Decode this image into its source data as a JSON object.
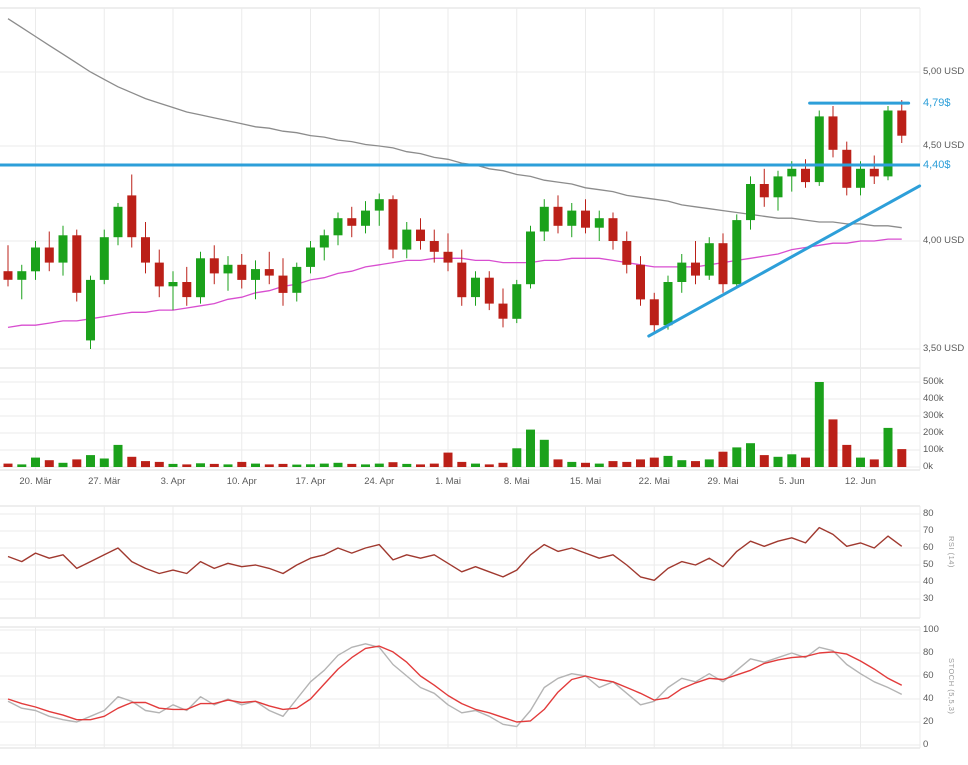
{
  "colors": {
    "up": "#1ba11b",
    "down": "#bb2018",
    "ma_long": "#8c8c8c",
    "ma_short": "#d84ed0",
    "annotation_blue": "#2d9fd9",
    "rsi_line": "#a0392f",
    "stoch_k": "#b4b4b4",
    "stoch_d": "#e23b3b",
    "grid": "#ebebeb",
    "border": "#dcdcdc",
    "axis_text": "#5b5b5b"
  },
  "axes": {
    "price_labels": [
      "5,00 USD",
      "4,50 USD",
      "4,00 USD",
      "3,50 USD"
    ],
    "price_values": [
      5.0,
      4.5,
      4.0,
      3.5
    ],
    "volume_labels": [
      "500k",
      "400k",
      "300k",
      "200k",
      "100k",
      "0k"
    ],
    "volume_values": [
      500,
      400,
      300,
      200,
      100,
      0
    ],
    "rsi_labels": [
      "80",
      "70",
      "60",
      "50",
      "40",
      "30"
    ],
    "rsi_values": [
      80,
      70,
      60,
      50,
      40,
      30
    ],
    "stoch_labels": [
      "100",
      "80",
      "60",
      "40",
      "20",
      "0"
    ],
    "stoch_values": [
      100,
      80,
      60,
      40,
      20,
      0
    ],
    "date_ticks": [
      {
        "i": 2,
        "label": "20. Mär"
      },
      {
        "i": 7,
        "label": "27. Mär"
      },
      {
        "i": 12,
        "label": "3. Apr"
      },
      {
        "i": 17,
        "label": "10. Apr"
      },
      {
        "i": 22,
        "label": "17. Apr"
      },
      {
        "i": 27,
        "label": "24. Apr"
      },
      {
        "i": 32,
        "label": "1. Mai"
      },
      {
        "i": 37,
        "label": "8. Mai"
      },
      {
        "i": 42,
        "label": "15. Mai"
      },
      {
        "i": 47,
        "label": "22. Mai"
      },
      {
        "i": 52,
        "label": "29. Mai"
      },
      {
        "i": 57,
        "label": "5. Jun"
      },
      {
        "i": 62,
        "label": "12. Jun"
      }
    ]
  },
  "annotations": {
    "resistance": {
      "price": 4.79,
      "label": "4,79$",
      "from_i": 58.3,
      "to_i": 65.5
    },
    "support": {
      "price": 4.4,
      "label": "4,40$",
      "full_width": true
    },
    "trendline": {
      "from": {
        "i": 46.6,
        "price": 3.56
      },
      "to": {
        "i": 66.3,
        "price": 4.29
      }
    }
  },
  "panels": {
    "rsi_title": "RSI (14)",
    "stoch_title": "STOCH (5,5,3)"
  },
  "chart_data": [
    {
      "type": "candlestick",
      "name": "price",
      "unit": "USD",
      "ylim": [
        3.45,
        5.45
      ],
      "ohlc": [
        [
          3.86,
          3.98,
          3.79,
          3.82
        ],
        [
          3.82,
          3.89,
          3.73,
          3.86
        ],
        [
          3.86,
          4.0,
          3.82,
          3.97
        ],
        [
          3.97,
          4.05,
          3.86,
          3.9
        ],
        [
          3.9,
          4.08,
          3.84,
          4.03
        ],
        [
          4.03,
          4.06,
          3.72,
          3.76
        ],
        [
          3.54,
          3.84,
          3.5,
          3.82
        ],
        [
          3.82,
          4.06,
          3.8,
          4.02
        ],
        [
          4.02,
          4.2,
          3.98,
          4.18
        ],
        [
          4.24,
          4.35,
          3.97,
          4.02
        ],
        [
          4.02,
          4.1,
          3.85,
          3.9
        ],
        [
          3.9,
          3.96,
          3.74,
          3.79
        ],
        [
          3.79,
          3.86,
          3.68,
          3.81
        ],
        [
          3.81,
          3.88,
          3.7,
          3.74
        ],
        [
          3.74,
          3.95,
          3.71,
          3.92
        ],
        [
          3.92,
          3.98,
          3.8,
          3.85
        ],
        [
          3.85,
          3.93,
          3.77,
          3.89
        ],
        [
          3.89,
          3.94,
          3.78,
          3.82
        ],
        [
          3.82,
          3.91,
          3.73,
          3.87
        ],
        [
          3.87,
          3.95,
          3.8,
          3.84
        ],
        [
          3.84,
          3.92,
          3.7,
          3.76
        ],
        [
          3.76,
          3.9,
          3.72,
          3.88
        ],
        [
          3.88,
          4.0,
          3.85,
          3.97
        ],
        [
          3.97,
          4.06,
          3.91,
          4.03
        ],
        [
          4.03,
          4.15,
          3.98,
          4.12
        ],
        [
          4.12,
          4.18,
          4.02,
          4.08
        ],
        [
          4.08,
          4.21,
          4.04,
          4.16
        ],
        [
          4.16,
          4.25,
          4.08,
          4.22
        ],
        [
          4.22,
          4.24,
          3.92,
          3.96
        ],
        [
          3.96,
          4.1,
          3.92,
          4.06
        ],
        [
          4.06,
          4.12,
          3.96,
          4.0
        ],
        [
          4.0,
          4.06,
          3.9,
          3.95
        ],
        [
          3.95,
          4.04,
          3.86,
          3.9
        ],
        [
          3.9,
          3.96,
          3.7,
          3.74
        ],
        [
          3.74,
          3.86,
          3.7,
          3.83
        ],
        [
          3.83,
          3.86,
          3.68,
          3.71
        ],
        [
          3.71,
          3.78,
          3.6,
          3.64
        ],
        [
          3.64,
          3.82,
          3.62,
          3.8
        ],
        [
          3.8,
          4.08,
          3.78,
          4.05
        ],
        [
          4.05,
          4.22,
          4.0,
          4.18
        ],
        [
          4.18,
          4.24,
          4.04,
          4.08
        ],
        [
          4.08,
          4.2,
          4.02,
          4.16
        ],
        [
          4.16,
          4.22,
          4.04,
          4.07
        ],
        [
          4.07,
          4.16,
          4.0,
          4.12
        ],
        [
          4.12,
          4.15,
          3.96,
          4.0
        ],
        [
          4.0,
          4.05,
          3.85,
          3.89
        ],
        [
          3.89,
          3.93,
          3.7,
          3.73
        ],
        [
          3.73,
          3.76,
          3.57,
          3.61
        ],
        [
          3.61,
          3.84,
          3.59,
          3.81
        ],
        [
          3.81,
          3.94,
          3.76,
          3.9
        ],
        [
          3.9,
          4.0,
          3.8,
          3.84
        ],
        [
          3.84,
          4.02,
          3.82,
          3.99
        ],
        [
          3.99,
          4.04,
          3.76,
          3.8
        ],
        [
          3.8,
          4.14,
          3.78,
          4.11
        ],
        [
          4.11,
          4.34,
          4.06,
          4.3
        ],
        [
          4.3,
          4.38,
          4.18,
          4.23
        ],
        [
          4.23,
          4.37,
          4.16,
          4.34
        ],
        [
          4.34,
          4.42,
          4.26,
          4.38
        ],
        [
          4.38,
          4.43,
          4.28,
          4.31
        ],
        [
          4.31,
          4.74,
          4.29,
          4.7
        ],
        [
          4.7,
          4.77,
          4.44,
          4.48
        ],
        [
          4.48,
          4.53,
          4.24,
          4.28
        ],
        [
          4.28,
          4.42,
          4.24,
          4.38
        ],
        [
          4.38,
          4.45,
          4.3,
          4.34
        ],
        [
          4.34,
          4.77,
          4.32,
          4.74
        ],
        [
          4.74,
          4.81,
          4.52,
          4.57
        ]
      ],
      "overlays": [
        {
          "name": "sma-long",
          "color_key": "ma_long",
          "values": [
            5.36,
            5.3,
            5.24,
            5.18,
            5.12,
            5.06,
            5.0,
            4.95,
            4.9,
            4.86,
            4.82,
            4.79,
            4.76,
            4.73,
            4.71,
            4.69,
            4.67,
            4.65,
            4.63,
            4.62,
            4.6,
            4.59,
            4.57,
            4.56,
            4.54,
            4.53,
            4.51,
            4.5,
            4.49,
            4.47,
            4.46,
            4.44,
            4.43,
            4.41,
            4.4,
            4.38,
            4.37,
            4.35,
            4.34,
            4.32,
            4.31,
            4.3,
            4.28,
            4.27,
            4.26,
            4.24,
            4.23,
            4.22,
            4.21,
            4.19,
            4.18,
            4.17,
            4.16,
            4.15,
            4.14,
            4.13,
            4.12,
            4.12,
            4.11,
            4.1,
            4.1,
            4.09,
            4.09,
            4.08,
            4.08,
            4.07
          ]
        },
        {
          "name": "sma-short",
          "color_key": "ma_short",
          "values": [
            3.6,
            3.61,
            3.61,
            3.62,
            3.63,
            3.63,
            3.64,
            3.65,
            3.66,
            3.67,
            3.67,
            3.68,
            3.68,
            3.69,
            3.7,
            3.71,
            3.73,
            3.74,
            3.76,
            3.77,
            3.79,
            3.8,
            3.82,
            3.83,
            3.85,
            3.86,
            3.88,
            3.89,
            3.9,
            3.91,
            3.91,
            3.92,
            3.92,
            3.92,
            3.91,
            3.91,
            3.9,
            3.9,
            3.9,
            3.91,
            3.91,
            3.92,
            3.92,
            3.92,
            3.91,
            3.9,
            3.89,
            3.88,
            3.88,
            3.88,
            3.88,
            3.89,
            3.9,
            3.91,
            3.92,
            3.93,
            3.94,
            3.96,
            3.97,
            3.98,
            3.99,
            3.99,
            4.0,
            4.0,
            4.01,
            4.01
          ]
        }
      ]
    },
    {
      "type": "bar",
      "name": "volume",
      "unit": "k",
      "ylim": [
        0,
        500
      ],
      "values": [
        20,
        15,
        55,
        40,
        25,
        45,
        70,
        50,
        130,
        60,
        35,
        30,
        18,
        15,
        22,
        18,
        15,
        30,
        20,
        15,
        18,
        14,
        16,
        20,
        25,
        18,
        15,
        20,
        28,
        18,
        15,
        20,
        85,
        30,
        20,
        15,
        25,
        110,
        220,
        160,
        45,
        30,
        25,
        20,
        35,
        30,
        45,
        55,
        65,
        40,
        35,
        45,
        90,
        115,
        140,
        70,
        60,
        75,
        55,
        500,
        280,
        130,
        55,
        45,
        230,
        105
      ]
    },
    {
      "type": "line",
      "name": "rsi",
      "ylim": [
        30,
        80
      ],
      "series": [
        {
          "name": "RSI (14)",
          "color_key": "rsi_line",
          "values": [
            55,
            52,
            57,
            54,
            56,
            48,
            52,
            56,
            60,
            52,
            48,
            45,
            47,
            45,
            52,
            48,
            51,
            49,
            50,
            48,
            45,
            50,
            54,
            56,
            60,
            57,
            60,
            62,
            53,
            56,
            54,
            56,
            51,
            46,
            49,
            46,
            43,
            47,
            56,
            62,
            58,
            60,
            57,
            54,
            56,
            50,
            43,
            41,
            48,
            52,
            50,
            54,
            49,
            58,
            64,
            61,
            64,
            66,
            63,
            72,
            68,
            61,
            63,
            60,
            67,
            61
          ]
        }
      ]
    },
    {
      "type": "line",
      "name": "stochastic",
      "ylim": [
        0,
        100
      ],
      "series": [
        {
          "name": "%K",
          "color_key": "stoch_k",
          "values": [
            38,
            32,
            30,
            25,
            22,
            20,
            25,
            30,
            42,
            38,
            30,
            28,
            35,
            30,
            42,
            35,
            40,
            35,
            38,
            30,
            25,
            40,
            55,
            65,
            78,
            85,
            88,
            85,
            70,
            60,
            50,
            45,
            35,
            28,
            30,
            25,
            18,
            16,
            30,
            50,
            58,
            62,
            60,
            50,
            55,
            45,
            35,
            38,
            50,
            58,
            55,
            62,
            55,
            65,
            75,
            72,
            76,
            80,
            76,
            85,
            82,
            70,
            62,
            55,
            50,
            44
          ]
        },
        {
          "name": "%D",
          "color_key": "stoch_d",
          "values": [
            40,
            36,
            33,
            29,
            26,
            22,
            22,
            25,
            32,
            37,
            37,
            32,
            31,
            31,
            36,
            36,
            39,
            37,
            38,
            34,
            31,
            32,
            40,
            53,
            66,
            76,
            84,
            86,
            81,
            72,
            60,
            52,
            43,
            36,
            31,
            28,
            24,
            20,
            21,
            31,
            46,
            57,
            60,
            57,
            55,
            50,
            45,
            39,
            41,
            49,
            54,
            58,
            57,
            61,
            65,
            71,
            74,
            76,
            77,
            80,
            81,
            79,
            73,
            66,
            58,
            52
          ]
        }
      ]
    }
  ]
}
